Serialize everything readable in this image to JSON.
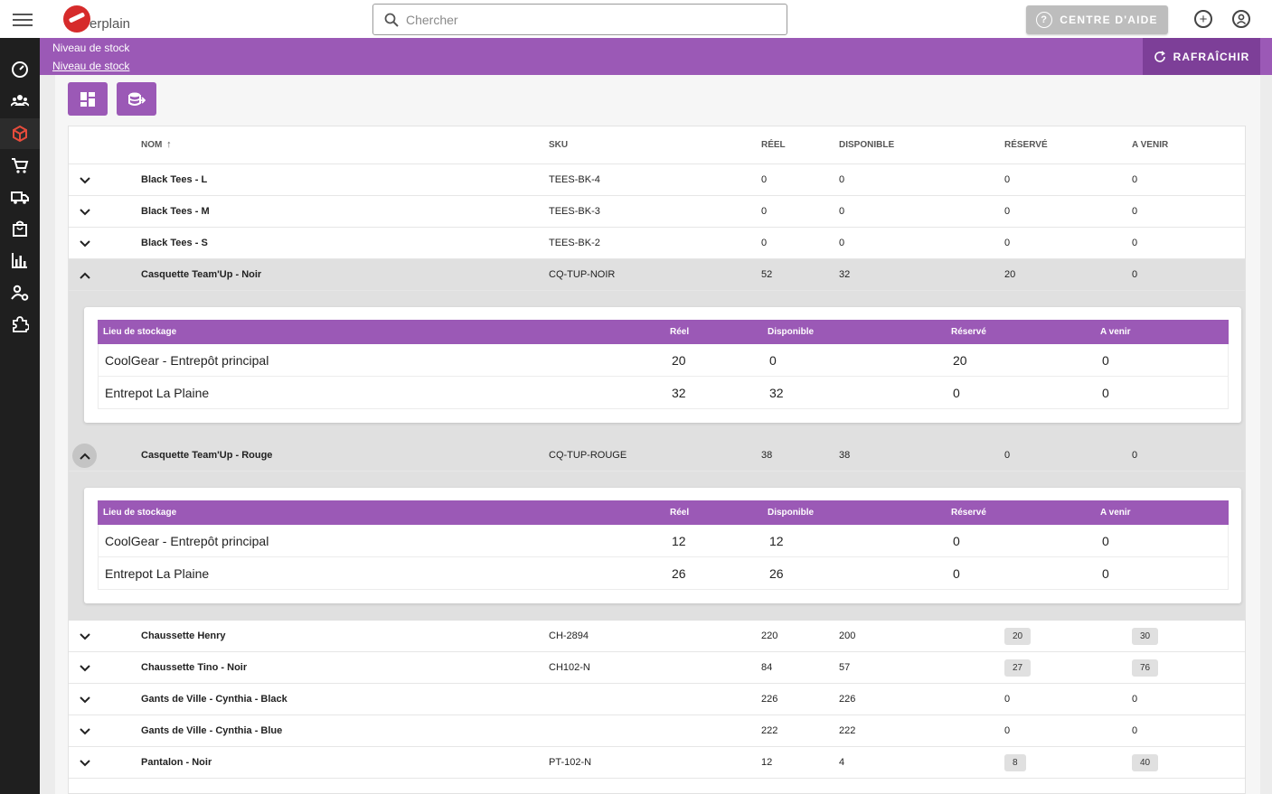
{
  "topbar": {
    "logo_text": "erplain",
    "search_placeholder": "Chercher",
    "help_label": "CENTRE D'AIDE",
    "help_icon": "?",
    "add_icon": "+",
    "account_icon": "●"
  },
  "sidebar": {
    "items": [
      {
        "name": "dashboard-icon"
      },
      {
        "name": "contacts-icon"
      },
      {
        "name": "inventory-icon",
        "active": true
      },
      {
        "name": "cart-icon"
      },
      {
        "name": "delivery-truck-icon"
      },
      {
        "name": "shopping-bag-icon"
      },
      {
        "name": "reports-chart-icon"
      },
      {
        "name": "user-settings-icon"
      },
      {
        "name": "puzzle-icon"
      }
    ]
  },
  "header": {
    "title": "Niveau de stock",
    "breadcrumb": "Niveau de stock",
    "refresh_label": "RAFRAÎCHIR"
  },
  "table": {
    "columns": {
      "name": "NOM",
      "sort_icon": "↑",
      "sku": "SKU",
      "real": "RÉEL",
      "available": "DISPONIBLE",
      "reserved": "RÉSERVÉ",
      "incoming": "A VENIR"
    },
    "rows": [
      {
        "name": "Black Tees - L",
        "sku": "TEES-BK-4",
        "real": "0",
        "available": "0",
        "reserved": "0",
        "incoming": "0"
      },
      {
        "name": "Black Tees - M",
        "sku": "TEES-BK-3",
        "real": "0",
        "available": "0",
        "reserved": "0",
        "incoming": "0"
      },
      {
        "name": "Black Tees - S",
        "sku": "TEES-BK-2",
        "real": "0",
        "available": "0",
        "reserved": "0",
        "incoming": "0"
      },
      {
        "name": "Casquette Team'Up - Noir",
        "sku": "CQ-TUP-NOIR",
        "real": "52",
        "available": "32",
        "reserved": "20",
        "incoming": "0",
        "expanded": true,
        "locations": [
          {
            "location": "CoolGear - Entrepôt principal",
            "real": "20",
            "available": "0",
            "reserved": "20",
            "incoming": "0"
          },
          {
            "location": "Entrepot La Plaine",
            "real": "32",
            "available": "32",
            "reserved": "0",
            "incoming": "0"
          }
        ]
      },
      {
        "name": "Casquette Team'Up - Rouge",
        "sku": "CQ-TUP-ROUGE",
        "real": "38",
        "available": "38",
        "reserved": "0",
        "incoming": "0",
        "expanded": true,
        "locations": [
          {
            "location": "CoolGear - Entrepôt principal",
            "real": "12",
            "available": "12",
            "reserved": "0",
            "incoming": "0"
          },
          {
            "location": "Entrepot La Plaine",
            "real": "26",
            "available": "26",
            "reserved": "0",
            "incoming": "0"
          }
        ]
      },
      {
        "name": "Chaussette Henry",
        "sku": "CH-2894",
        "real": "220",
        "available": "200",
        "reserved": "20",
        "incoming": "30",
        "chips": true
      },
      {
        "name": "Chaussette Tino - Noir",
        "sku": "CH102-N",
        "real": "84",
        "available": "57",
        "reserved": "27",
        "incoming": "76",
        "chips": true
      },
      {
        "name": "Gants de Ville - Cynthia - Black",
        "sku": "",
        "real": "226",
        "available": "226",
        "reserved": "0",
        "incoming": "0"
      },
      {
        "name": "Gants de Ville - Cynthia - Blue",
        "sku": "",
        "real": "222",
        "available": "222",
        "reserved": "0",
        "incoming": "0"
      },
      {
        "name": "Pantalon - Noir",
        "sku": "PT-102-N",
        "real": "12",
        "available": "4",
        "reserved": "8",
        "incoming": "40",
        "chips": true
      }
    ],
    "sub_columns": {
      "location": "Lieu de stockage",
      "real": "Réel",
      "available": "Disponible",
      "reserved": "Réservé",
      "incoming": "A venir"
    }
  },
  "colors": {
    "accent": "#9b59b6",
    "accent_dark": "#7d3f98",
    "sidebar": "#1f1f1f"
  }
}
